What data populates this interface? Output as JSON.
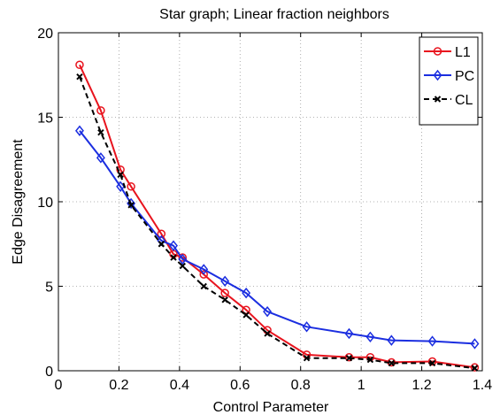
{
  "chart_data": {
    "type": "line",
    "title": "Star graph; Linear fraction neighbors",
    "xlabel": "Control Parameter",
    "ylabel": "Edge Disagreement",
    "xlim": [
      0,
      1.4
    ],
    "ylim": [
      0,
      20
    ],
    "xticks": [
      0,
      0.2,
      0.4,
      0.6,
      0.8,
      1,
      1.2,
      1.4
    ],
    "yticks": [
      0,
      5,
      10,
      15,
      20
    ],
    "xtick_labels": [
      "0",
      "0.2",
      "0.4",
      "0.6",
      "0.8",
      "1",
      "1.2",
      "1.4"
    ],
    "ytick_labels": [
      "0",
      "5",
      "10",
      "15",
      "20"
    ],
    "grid": true,
    "legend_position": "top-right",
    "series": [
      {
        "name": "L1",
        "color": "#e8141e",
        "marker": "circle",
        "line": "solid",
        "x": [
          0.07,
          0.14,
          0.205,
          0.24,
          0.34,
          0.38,
          0.41,
          0.48,
          0.55,
          0.62,
          0.69,
          0.82,
          0.96,
          1.03,
          1.1,
          1.235,
          1.375
        ],
        "y": [
          18.1,
          15.4,
          11.9,
          10.9,
          8.1,
          6.9,
          6.7,
          5.7,
          4.6,
          3.6,
          2.4,
          0.95,
          0.8,
          0.8,
          0.5,
          0.55,
          0.2
        ]
      },
      {
        "name": "PC",
        "color": "#1b2ee0",
        "marker": "diamond",
        "line": "solid",
        "x": [
          0.07,
          0.14,
          0.205,
          0.24,
          0.34,
          0.38,
          0.41,
          0.48,
          0.55,
          0.62,
          0.69,
          0.82,
          0.96,
          1.03,
          1.1,
          1.235,
          1.375
        ],
        "y": [
          14.2,
          12.6,
          10.9,
          9.9,
          7.7,
          7.4,
          6.6,
          6.0,
          5.3,
          4.6,
          3.5,
          2.6,
          2.2,
          2.0,
          1.8,
          1.75,
          1.6
        ]
      },
      {
        "name": "CL",
        "color": "#000000",
        "marker": "x",
        "line": "dashed",
        "x": [
          0.07,
          0.14,
          0.205,
          0.24,
          0.34,
          0.38,
          0.41,
          0.48,
          0.55,
          0.62,
          0.69,
          0.82,
          0.96,
          1.03,
          1.1,
          1.235,
          1.375
        ],
        "y": [
          17.4,
          14.1,
          11.6,
          9.8,
          7.5,
          6.7,
          6.2,
          5.0,
          4.2,
          3.3,
          2.2,
          0.75,
          0.75,
          0.65,
          0.45,
          0.45,
          0.15
        ]
      }
    ]
  }
}
